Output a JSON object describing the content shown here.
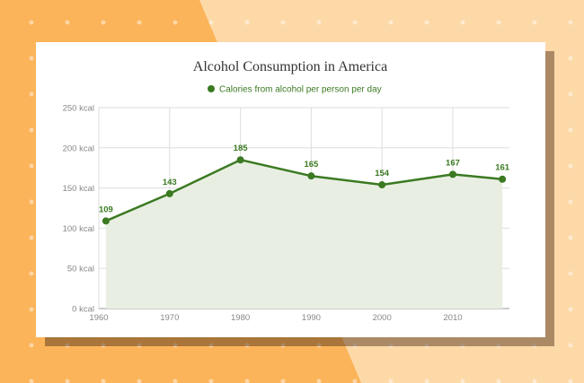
{
  "colors": {
    "bg_left": "#fcb45a",
    "bg_right": "#fdd9a8",
    "series": "#3b7a22",
    "area": "#e8efe2",
    "grid": "#dddddd",
    "tick": "#888888"
  },
  "chart_data": {
    "type": "line",
    "title": "Alcohol Consumption in America",
    "xlabel": "",
    "ylabel": "",
    "legend_position": "top",
    "grid": true,
    "filled_area": true,
    "xlim": [
      1960,
      2018
    ],
    "ylim": [
      0,
      250
    ],
    "x_ticks": [
      1960,
      1970,
      1980,
      1990,
      2000,
      2010
    ],
    "y_ticks": [
      0,
      50,
      100,
      150,
      200,
      250
    ],
    "y_tick_labels": [
      "0 kcal",
      "50 kcal",
      "100 kcal",
      "150 kcal",
      "200 kcal",
      "250 kcal"
    ],
    "series": [
      {
        "name": "Calories from alcohol per person per day",
        "x": [
          1961,
          1970,
          1980,
          1990,
          2000,
          2010,
          2017
        ],
        "values": [
          109,
          143,
          185,
          165,
          154,
          167,
          161
        ]
      }
    ]
  }
}
